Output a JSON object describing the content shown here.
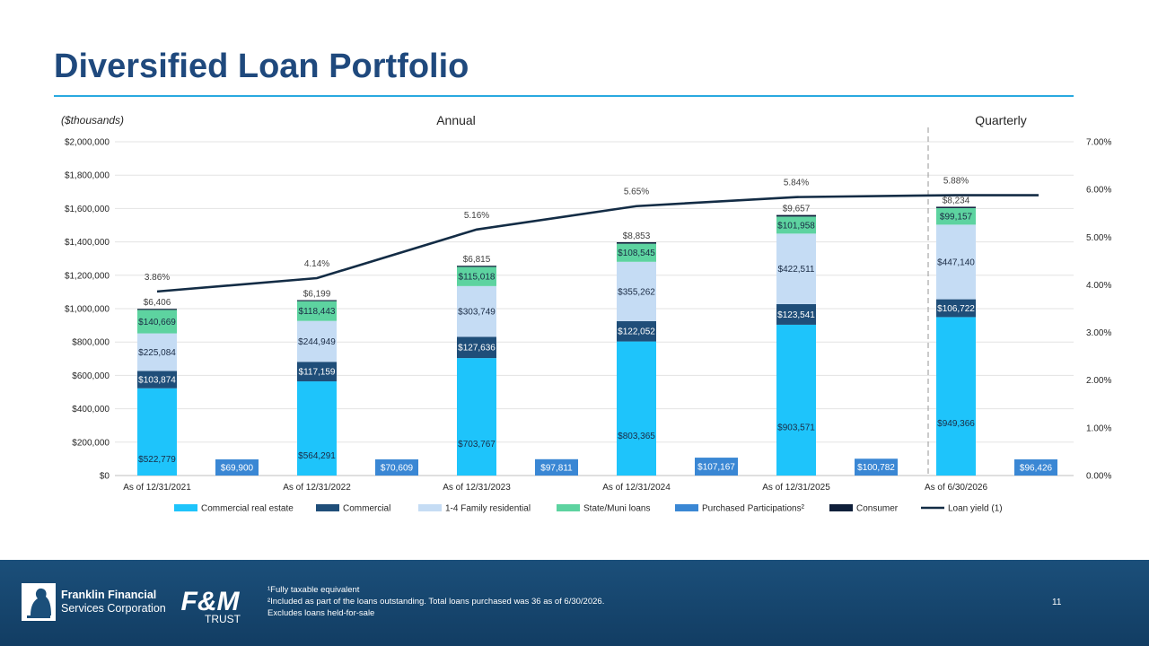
{
  "title": "Diversified Loan Portfolio",
  "unit_note": "($thousands)",
  "section_annual": "Annual",
  "section_quarterly": "Quarterly",
  "chart_data": {
    "type": "bar",
    "stacked": true,
    "categories": [
      "As of 12/31/2021",
      "As of 12/31/2022",
      "As of 12/31/2023",
      "As of 12/31/2024",
      "As of 12/31/2025",
      "As of 6/30/2026"
    ],
    "series": [
      {
        "name": "Commercial real estate",
        "color": "#1ec4fb",
        "values": [
          522779,
          564291,
          703767,
          803365,
          903571,
          949366
        ],
        "labels": [
          "$522,779",
          "$564,291",
          "$703,767",
          "$803,365",
          "$903,571",
          "$949,366"
        ]
      },
      {
        "name": "Commercial",
        "color": "#1f4e79",
        "values": [
          103874,
          117159,
          127636,
          122052,
          123541,
          106722
        ],
        "labels": [
          "$103,874",
          "$117,159",
          "$127,636",
          "$122,052",
          "$123,541",
          "$106,722"
        ]
      },
      {
        "name": "1-4 Family residential",
        "color": "#c5dcf4",
        "values": [
          225084,
          244949,
          303749,
          355262,
          422511,
          447140
        ],
        "labels": [
          "$225,084",
          "$244,949",
          "$303,749",
          "$355,262",
          "$422,511",
          "$447,140"
        ]
      },
      {
        "name": "State/Muni loans",
        "color": "#5dd3a0",
        "values": [
          140669,
          118443,
          115018,
          108545,
          101958,
          99157
        ],
        "labels": [
          "$140,669",
          "$118,443",
          "$115,018",
          "$108,545",
          "$101,958",
          "$99,157"
        ]
      },
      {
        "name": "Purchased Participations²",
        "color": "#3a87d4",
        "values": [
          69900,
          70609,
          97811,
          107167,
          100782,
          96426
        ],
        "labels": [
          "$69,900",
          "$70,609",
          "$97,811",
          "$107,167",
          "$100,782",
          "$96,426"
        ]
      },
      {
        "name": "Consumer",
        "color": "#0f1f3a",
        "values": [
          6406,
          6199,
          6815,
          8853,
          9657,
          8234
        ],
        "labels": [
          "$6,406",
          "$6,199",
          "$6,815",
          "$8,853",
          "$9,657",
          "$8,234"
        ]
      },
      {
        "name": "Loan yield (1)",
        "type": "line",
        "axis": "right",
        "color": "#132c45",
        "values": [
          3.86,
          4.14,
          5.16,
          5.65,
          5.84,
          5.88
        ],
        "labels": [
          "3.86%",
          "4.14%",
          "5.16%",
          "5.65%",
          "5.84%",
          "5.88%"
        ]
      }
    ],
    "ylim": [
      0,
      2000000
    ],
    "y_ticks": [
      "$0",
      "$200,000",
      "$400,000",
      "$600,000",
      "$800,000",
      "$1,000,000",
      "$1,200,000",
      "$1,400,000",
      "$1,600,000",
      "$1,800,000",
      "$2,000,000"
    ],
    "y2lim": [
      0,
      7
    ],
    "y2_ticks": [
      "0.00%",
      "1.00%",
      "2.00%",
      "3.00%",
      "4.00%",
      "5.00%",
      "6.00%",
      "7.00%"
    ],
    "grid": true,
    "legend_position": "bottom"
  },
  "footer": {
    "company_line1": "Franklin Financial",
    "company_line2": "Services Corporation",
    "brand_top": "F&M",
    "brand_bottom": "TRUST",
    "footnote1": "¹Fully taxable equivalent",
    "footnote2": "²Included as part of the loans outstanding. Total loans purchased was 36 as of 6/30/2026.",
    "footnote3": "Excludes loans held-for-sale",
    "page_number": "11"
  }
}
